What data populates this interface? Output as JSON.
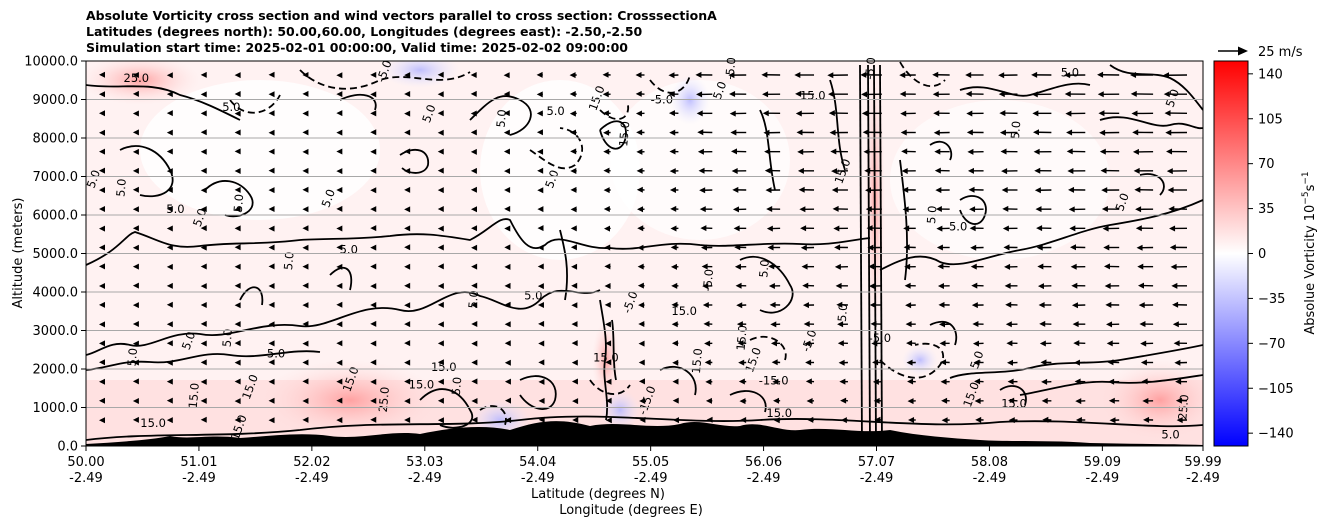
{
  "chart_data": {
    "type": "heatmap",
    "title_lines": [
      "Absolute Vorticity cross section and wind vectors parallel to cross section: CrosssectionA",
      "Latitudes (degrees north): 50.00,60.00, Longitudes (degrees east): -2.50,-2.50",
      "Simulation start time: 2025-02-01 00:00:00, Valid time: 2025-02-02 09:00:00"
    ],
    "ylabel": "Altitude (meters)",
    "xlabel_lines": [
      "Latitude (degrees N)",
      "Longitude (degrees E)"
    ],
    "ylim": [
      0,
      10000
    ],
    "y_ticks": [
      "0.0",
      "1000.0",
      "2000.0",
      "3000.0",
      "4000.0",
      "5000.0",
      "6000.0",
      "7000.0",
      "8000.0",
      "9000.0",
      "10000.0"
    ],
    "x_ticks": [
      {
        "lat": "50.00",
        "lon": "-2.49"
      },
      {
        "lat": "51.01",
        "lon": "-2.49"
      },
      {
        "lat": "52.02",
        "lon": "-2.49"
      },
      {
        "lat": "53.03",
        "lon": "-2.49"
      },
      {
        "lat": "54.04",
        "lon": "-2.49"
      },
      {
        "lat": "55.05",
        "lon": "-2.49"
      },
      {
        "lat": "56.06",
        "lon": "-2.49"
      },
      {
        "lat": "57.07",
        "lon": "-2.49"
      },
      {
        "lat": "58.08",
        "lon": "-2.49"
      },
      {
        "lat": "59.09",
        "lon": "-2.49"
      },
      {
        "lat": "59.99",
        "lon": "-2.49"
      }
    ],
    "grid": "horizontal",
    "colorbar": {
      "label": "Absolue Vorticity 10",
      "label_exponent": "−5",
      "label_unit": "s",
      "label_unit_exponent": "−1",
      "range": [
        -150,
        150
      ],
      "ticks": [
        "−140",
        "−105",
        "−70",
        "−35",
        "0",
        "35",
        "70",
        "105",
        "140"
      ],
      "tick_values": [
        -140,
        -105,
        -70,
        -35,
        0,
        35,
        70,
        105,
        140
      ],
      "colormap": "bwr",
      "low_color": "#0000ff",
      "mid_color": "#ffffff",
      "high_color": "#ff0000"
    },
    "wind_key": {
      "label": "25 m/s"
    },
    "contour_labels": [
      {
        "text": "25.0",
        "lat": 50.45,
        "alt": 9450
      },
      {
        "text": "5.0",
        "lat": 50.1,
        "alt": 6900
      },
      {
        "text": "5.0",
        "lat": 50.35,
        "alt": 6700
      },
      {
        "text": "5.0",
        "lat": 50.8,
        "alt": 6050
      },
      {
        "text": "5.0",
        "lat": 51.05,
        "alt": 5900
      },
      {
        "text": "5.0",
        "lat": 51.4,
        "alt": 6300
      },
      {
        "text": "5.0",
        "lat": 51.3,
        "alt": 8700
      },
      {
        "text": "5.0",
        "lat": 52.2,
        "alt": 6400
      },
      {
        "text": "5.0",
        "lat": 51.85,
        "alt": 4800
      },
      {
        "text": "5.0",
        "lat": 52.35,
        "alt": 5000
      },
      {
        "text": "5.0",
        "lat": 53.1,
        "alt": 8600
      },
      {
        "text": "5.0",
        "lat": 53.75,
        "alt": 8500
      },
      {
        "text": "5.0",
        "lat": 54.2,
        "alt": 8600
      },
      {
        "text": "5.0",
        "lat": 54.2,
        "alt": 6900
      },
      {
        "text": "5.0",
        "lat": 53.5,
        "alt": 3800
      },
      {
        "text": "5.0",
        "lat": 54.0,
        "alt": 3800
      },
      {
        "text": "-5.0",
        "lat": 54.9,
        "alt": 3700
      },
      {
        "text": "-5.0",
        "lat": 55.6,
        "alt": 4300
      },
      {
        "text": "15.0",
        "lat": 55.35,
        "alt": 3400
      },
      {
        "text": "15.0",
        "lat": 54.6,
        "alt": 9000
      },
      {
        "text": "15.0",
        "lat": 54.85,
        "alt": 8100
      },
      {
        "text": "-5.0",
        "lat": 55.15,
        "alt": 8900
      },
      {
        "text": "5.0",
        "lat": 55.7,
        "alt": 9200
      },
      {
        "text": "5.0",
        "lat": 56.1,
        "alt": 4600
      },
      {
        "text": "15.0",
        "lat": 56.5,
        "alt": 9000
      },
      {
        "text": "15.0",
        "lat": 56.8,
        "alt": 7100
      },
      {
        "text": "5.0",
        "lat": 57.6,
        "alt": 6000
      },
      {
        "text": "5.0",
        "lat": 57.8,
        "alt": 5600
      },
      {
        "text": "5.0",
        "lat": 59.3,
        "alt": 6300
      },
      {
        "text": "5.0",
        "lat": 58.35,
        "alt": 8200
      },
      {
        "text": "5.0",
        "lat": 58.8,
        "alt": 9600
      },
      {
        "text": "5.0",
        "lat": 59.75,
        "alt": 9000
      },
      {
        "text": "-5.0",
        "lat": 56.8,
        "alt": 3400
      },
      {
        "text": "-5.0",
        "lat": 57.1,
        "alt": 2700
      },
      {
        "text": "-5.0",
        "lat": 56.5,
        "alt": 2700
      },
      {
        "text": "15.0",
        "lat": 55.9,
        "alt": 2800
      },
      {
        "text": "-15.0",
        "lat": 56.15,
        "alt": 1600
      },
      {
        "text": "15.0",
        "lat": 56.0,
        "alt": 2200
      },
      {
        "text": "15.0",
        "lat": 55.5,
        "alt": 2200
      },
      {
        "text": "15.0",
        "lat": 54.65,
        "alt": 2200
      },
      {
        "text": "-15.0",
        "lat": 55.05,
        "alt": 1150
      },
      {
        "text": "5.0",
        "lat": 53.35,
        "alt": 1550
      },
      {
        "text": "15.0",
        "lat": 53.2,
        "alt": 1950
      },
      {
        "text": "15.0",
        "lat": 52.4,
        "alt": 1700
      },
      {
        "text": "25.0",
        "lat": 52.7,
        "alt": 1200
      },
      {
        "text": "15.0",
        "lat": 53.0,
        "alt": 1500
      },
      {
        "text": "5.0",
        "lat": 50.95,
        "alt": 2700
      },
      {
        "text": "5.0",
        "lat": 51.3,
        "alt": 2800
      },
      {
        "text": "5.0",
        "lat": 51.7,
        "alt": 2300
      },
      {
        "text": "15.0",
        "lat": 51.5,
        "alt": 1500
      },
      {
        "text": "15.0",
        "lat": 51.0,
        "alt": 1300
      },
      {
        "text": "15.0",
        "lat": 50.6,
        "alt": 500
      },
      {
        "text": "15.0",
        "lat": 51.4,
        "alt": 450
      },
      {
        "text": "5.0",
        "lat": 50.45,
        "alt": 2300
      },
      {
        "text": "15.0",
        "lat": 58.3,
        "alt": 1000
      },
      {
        "text": "15.0",
        "lat": 57.95,
        "alt": 1300
      },
      {
        "text": "25.0",
        "lat": 59.85,
        "alt": 1000
      },
      {
        "text": "5.0",
        "lat": 59.7,
        "alt": 200
      },
      {
        "text": "5.0",
        "lat": 58.0,
        "alt": 2200
      },
      {
        "text": "-5.0",
        "lat": 57.05,
        "alt": 9800
      },
      {
        "text": "-5.0",
        "lat": 52.3,
        "alt": 9900
      },
      {
        "text": "-5.0",
        "lat": 52.7,
        "alt": 9700
      },
      {
        "text": "-5.0",
        "lat": 55.8,
        "alt": 9800
      },
      {
        "text": "15.0",
        "lat": 56.2,
        "alt": 750
      },
      {
        "text": "5.0",
        "lat": 59.8,
        "alt": 9850
      }
    ]
  }
}
